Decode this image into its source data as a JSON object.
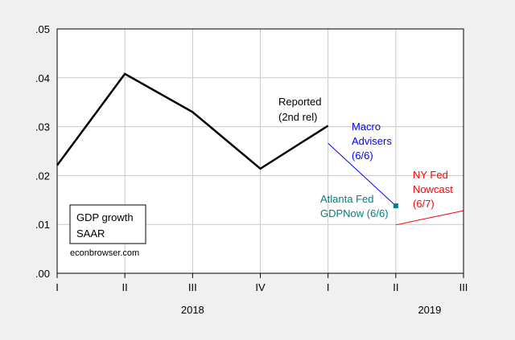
{
  "chart_data": {
    "type": "line",
    "title": "",
    "xlabel": "",
    "ylabel": "",
    "ylim": [
      0,
      0.05
    ],
    "yticks": [
      ".00",
      ".01",
      ".02",
      ".03",
      ".04",
      ".05"
    ],
    "x_periods": [
      "I",
      "II",
      "III",
      "IV",
      "I",
      "II",
      "III"
    ],
    "year_labels": [
      {
        "label": "2018",
        "center_period": 2
      },
      {
        "label": "2019",
        "center_period": 5.5
      }
    ],
    "grid": true,
    "series": [
      {
        "name": "Reported (2nd rel)",
        "label_lines": [
          "Reported",
          "(2nd rel)"
        ],
        "color": "#000000",
        "points": [
          [
            0,
            0.0221
          ],
          [
            1,
            0.0408
          ],
          [
            2,
            0.033
          ],
          [
            3,
            0.0214
          ],
          [
            4,
            0.0302
          ]
        ]
      },
      {
        "name": "Macro Advisers (6/6)",
        "label_lines": [
          "Macro",
          "Advisers",
          "(6/6)"
        ],
        "color": "#0000ff",
        "points": [
          [
            4,
            0.0266
          ],
          [
            5,
            0.0138
          ]
        ]
      },
      {
        "name": "Atlanta Fed GDPNow (6/6)",
        "label_lines": [
          "Atlanta Fed",
          "GDPNow (6/6)"
        ],
        "color": "#008080",
        "marker": "square",
        "points": [
          [
            5,
            0.0138
          ]
        ]
      },
      {
        "name": "NY Fed Nowcast (6/7)",
        "label_lines": [
          "NY Fed",
          "Nowcast",
          "(6/7)"
        ],
        "color": "#ff0000",
        "points": [
          [
            5,
            0.0099
          ],
          [
            6,
            0.0128
          ]
        ]
      }
    ],
    "legend": {
      "lines": [
        "GDP growth",
        "SAAR"
      ],
      "placement": "bottom-left"
    },
    "annotation": "econbrowser.com"
  }
}
